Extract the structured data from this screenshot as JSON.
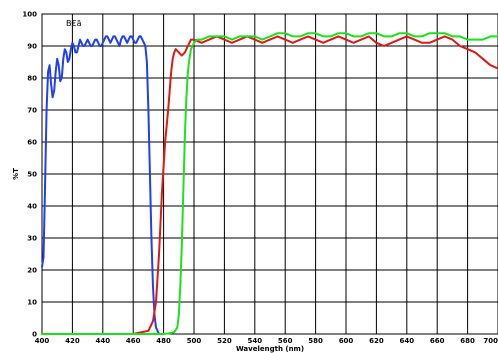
{
  "chart_data": {
    "type": "line",
    "title": "",
    "annotation": "B€ã",
    "xlabel": "Wavelength (nm)",
    "ylabel": "%T",
    "xlim": [
      400,
      700
    ],
    "ylim": [
      0,
      100
    ],
    "x_ticks": [
      "400",
      "420",
      "440",
      "460",
      "480",
      "500",
      "520",
      "540",
      "560",
      "580",
      "600",
      "620",
      "640",
      "660",
      "680",
      "700"
    ],
    "y_ticks": [
      "0",
      "10",
      "20",
      "30",
      "40",
      "50",
      "60",
      "70",
      "80",
      "90",
      "100"
    ],
    "grid": true,
    "series": [
      {
        "color": "#1f3ff2",
        "points": [
          [
            400,
            21
          ],
          [
            401,
            24
          ],
          [
            402,
            46
          ],
          [
            403,
            70
          ],
          [
            404,
            82
          ],
          [
            405,
            84
          ],
          [
            406,
            78
          ],
          [
            407,
            74
          ],
          [
            408,
            76
          ],
          [
            409,
            82
          ],
          [
            410,
            86
          ],
          [
            411,
            84
          ],
          [
            412,
            79
          ],
          [
            413,
            80
          ],
          [
            414,
            86
          ],
          [
            415,
            89
          ],
          [
            416,
            88
          ],
          [
            417,
            85
          ],
          [
            418,
            86
          ],
          [
            419,
            89
          ],
          [
            420,
            91
          ],
          [
            421,
            90
          ],
          [
            422,
            88
          ],
          [
            423,
            88
          ],
          [
            424,
            90
          ],
          [
            425,
            92
          ],
          [
            426,
            91
          ],
          [
            427,
            90
          ],
          [
            428,
            90
          ],
          [
            429,
            91
          ],
          [
            430,
            92
          ],
          [
            431,
            91
          ],
          [
            432,
            90
          ],
          [
            433,
            90
          ],
          [
            434,
            91
          ],
          [
            435,
            92
          ],
          [
            436,
            92
          ],
          [
            437,
            91
          ],
          [
            438,
            90
          ],
          [
            439,
            90
          ],
          [
            440,
            91
          ],
          [
            441,
            92
          ],
          [
            442,
            93
          ],
          [
            443,
            93
          ],
          [
            444,
            92
          ],
          [
            445,
            91
          ],
          [
            446,
            92
          ],
          [
            447,
            93
          ],
          [
            448,
            93
          ],
          [
            449,
            92
          ],
          [
            450,
            91
          ],
          [
            451,
            90
          ],
          [
            452,
            92
          ],
          [
            453,
            93
          ],
          [
            454,
            93
          ],
          [
            455,
            92
          ],
          [
            456,
            91
          ],
          [
            457,
            92
          ],
          [
            458,
            93
          ],
          [
            459,
            93
          ],
          [
            460,
            92
          ],
          [
            461,
            91
          ],
          [
            462,
            91
          ],
          [
            463,
            92
          ],
          [
            464,
            93
          ],
          [
            465,
            93
          ],
          [
            466,
            92
          ],
          [
            467,
            91
          ],
          [
            468,
            90
          ],
          [
            469,
            85
          ],
          [
            470,
            70
          ],
          [
            471,
            50
          ],
          [
            472,
            30
          ],
          [
            473,
            15
          ],
          [
            474,
            6
          ],
          [
            475,
            2
          ],
          [
            476,
            1
          ],
          [
            477,
            0
          ],
          [
            478,
            0
          ]
        ]
      },
      {
        "color": "#e01818",
        "points": [
          [
            400,
            0
          ],
          [
            410,
            0
          ],
          [
            420,
            0
          ],
          [
            430,
            0
          ],
          [
            440,
            0
          ],
          [
            450,
            0
          ],
          [
            460,
            0
          ],
          [
            465,
            0.5
          ],
          [
            470,
            1
          ],
          [
            473,
            4
          ],
          [
            475,
            10
          ],
          [
            477,
            25
          ],
          [
            479,
            45
          ],
          [
            481,
            60
          ],
          [
            483,
            70
          ],
          [
            484,
            76
          ],
          [
            485,
            82
          ],
          [
            486,
            86
          ],
          [
            487,
            88
          ],
          [
            488,
            89
          ],
          [
            490,
            88
          ],
          [
            492,
            87
          ],
          [
            494,
            88
          ],
          [
            496,
            90
          ],
          [
            498,
            92
          ],
          [
            500,
            92
          ],
          [
            505,
            91
          ],
          [
            510,
            92
          ],
          [
            515,
            93
          ],
          [
            520,
            92
          ],
          [
            525,
            91
          ],
          [
            530,
            92
          ],
          [
            535,
            93
          ],
          [
            540,
            92
          ],
          [
            545,
            91
          ],
          [
            550,
            92
          ],
          [
            555,
            93
          ],
          [
            560,
            92
          ],
          [
            565,
            91
          ],
          [
            570,
            92
          ],
          [
            575,
            93
          ],
          [
            580,
            92
          ],
          [
            585,
            91
          ],
          [
            590,
            92
          ],
          [
            595,
            93
          ],
          [
            600,
            92
          ],
          [
            605,
            91
          ],
          [
            610,
            92
          ],
          [
            615,
            93
          ],
          [
            620,
            91
          ],
          [
            625,
            90
          ],
          [
            630,
            91
          ],
          [
            635,
            92
          ],
          [
            640,
            93
          ],
          [
            645,
            92
          ],
          [
            650,
            91
          ],
          [
            655,
            91
          ],
          [
            660,
            92
          ],
          [
            665,
            93
          ],
          [
            670,
            92
          ],
          [
            675,
            90
          ],
          [
            680,
            89
          ],
          [
            685,
            88
          ],
          [
            690,
            86
          ],
          [
            695,
            84
          ],
          [
            700,
            83
          ]
        ]
      },
      {
        "color": "#1ee01e",
        "points": [
          [
            400,
            0
          ],
          [
            440,
            0
          ],
          [
            470,
            0
          ],
          [
            480,
            0
          ],
          [
            485,
            0.3
          ],
          [
            487,
            0.6
          ],
          [
            489,
            2
          ],
          [
            490,
            6
          ],
          [
            491,
            15
          ],
          [
            492,
            28
          ],
          [
            493,
            45
          ],
          [
            494,
            62
          ],
          [
            495,
            74
          ],
          [
            496,
            82
          ],
          [
            497,
            86
          ],
          [
            498,
            89
          ],
          [
            499,
            90
          ],
          [
            500,
            91
          ],
          [
            502,
            92
          ],
          [
            505,
            92
          ],
          [
            510,
            93
          ],
          [
            515,
            93
          ],
          [
            520,
            93
          ],
          [
            525,
            92
          ],
          [
            530,
            93
          ],
          [
            535,
            93
          ],
          [
            540,
            93
          ],
          [
            545,
            92
          ],
          [
            550,
            93
          ],
          [
            555,
            94
          ],
          [
            560,
            94
          ],
          [
            565,
            93
          ],
          [
            570,
            93
          ],
          [
            575,
            94
          ],
          [
            580,
            94
          ],
          [
            585,
            93
          ],
          [
            590,
            93
          ],
          [
            595,
            94
          ],
          [
            600,
            94
          ],
          [
            605,
            93
          ],
          [
            610,
            93
          ],
          [
            615,
            94
          ],
          [
            620,
            94
          ],
          [
            625,
            93
          ],
          [
            630,
            93
          ],
          [
            635,
            94
          ],
          [
            640,
            94
          ],
          [
            645,
            93
          ],
          [
            650,
            93
          ],
          [
            655,
            94
          ],
          [
            660,
            94
          ],
          [
            665,
            94
          ],
          [
            670,
            93
          ],
          [
            675,
            93
          ],
          [
            680,
            92
          ],
          [
            685,
            92
          ],
          [
            690,
            92
          ],
          [
            695,
            93
          ],
          [
            700,
            93
          ]
        ]
      }
    ]
  }
}
